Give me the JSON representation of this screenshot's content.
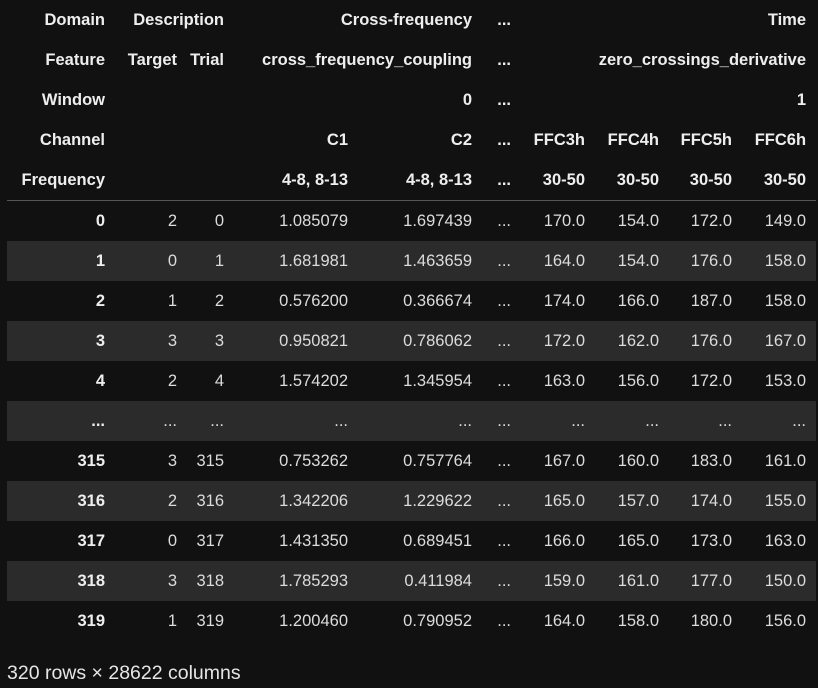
{
  "header": {
    "domain_row": {
      "index": "Domain",
      "description": "Description",
      "cross_frequency": "Cross-frequency",
      "ellipsis": "...",
      "time": "Time"
    },
    "feature_row": {
      "index": "Feature",
      "target": "Target",
      "trial": "Trial",
      "cfc": "cross_frequency_coupling",
      "ellipsis": "...",
      "zcd": "zero_crossings_derivative"
    },
    "window_row": {
      "index": "Window",
      "cfc_window": "0",
      "ellipsis": "...",
      "time_window": "1"
    },
    "channel_row": {
      "index": "Channel",
      "c1": "C1",
      "c2": "C2",
      "ellipsis": "...",
      "ffc3h": "FFC3h",
      "ffc4h": "FFC4h",
      "ffc5h": "FFC5h",
      "ffc6h": "FFC6h"
    },
    "frequency_row": {
      "index": "Frequency",
      "f1": "4-8, 8-13",
      "f2": "4-8, 8-13",
      "ellipsis": "...",
      "f3": "30-50",
      "f4": "30-50",
      "f5": "30-50",
      "f6": "30-50"
    }
  },
  "rows": [
    {
      "idx": "0",
      "cells": [
        "2",
        "0",
        "1.085079",
        "1.697439",
        "...",
        "170.0",
        "154.0",
        "172.0",
        "149.0"
      ]
    },
    {
      "idx": "1",
      "cells": [
        "0",
        "1",
        "1.681981",
        "1.463659",
        "...",
        "164.0",
        "154.0",
        "176.0",
        "158.0"
      ]
    },
    {
      "idx": "2",
      "cells": [
        "1",
        "2",
        "0.576200",
        "0.366674",
        "...",
        "174.0",
        "166.0",
        "187.0",
        "158.0"
      ]
    },
    {
      "idx": "3",
      "cells": [
        "3",
        "3",
        "0.950821",
        "0.786062",
        "...",
        "172.0",
        "162.0",
        "176.0",
        "167.0"
      ]
    },
    {
      "idx": "4",
      "cells": [
        "2",
        "4",
        "1.574202",
        "1.345954",
        "...",
        "163.0",
        "156.0",
        "172.0",
        "153.0"
      ]
    },
    {
      "idx": "...",
      "cells": [
        "...",
        "...",
        "...",
        "...",
        "...",
        "...",
        "...",
        "...",
        "..."
      ]
    },
    {
      "idx": "315",
      "cells": [
        "3",
        "315",
        "0.753262",
        "0.757764",
        "...",
        "167.0",
        "160.0",
        "183.0",
        "161.0"
      ]
    },
    {
      "idx": "316",
      "cells": [
        "2",
        "316",
        "1.342206",
        "1.229622",
        "...",
        "165.0",
        "157.0",
        "174.0",
        "155.0"
      ]
    },
    {
      "idx": "317",
      "cells": [
        "0",
        "317",
        "1.431350",
        "0.689451",
        "...",
        "166.0",
        "165.0",
        "173.0",
        "163.0"
      ]
    },
    {
      "idx": "318",
      "cells": [
        "3",
        "318",
        "1.785293",
        "0.411984",
        "...",
        "159.0",
        "161.0",
        "177.0",
        "150.0"
      ]
    },
    {
      "idx": "319",
      "cells": [
        "1",
        "319",
        "1.200460",
        "0.790952",
        "...",
        "164.0",
        "158.0",
        "180.0",
        "156.0"
      ]
    }
  ],
  "caption": "320 rows × 28622 columns",
  "colors": {
    "background": "#111111",
    "stripe": "#2b2b2b",
    "text": "#e6e6e6",
    "divider": "#555555"
  }
}
